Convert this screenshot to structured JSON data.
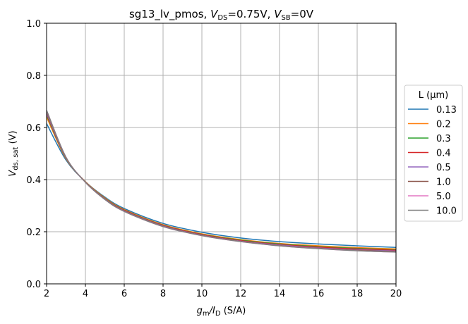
{
  "chart_data": {
    "type": "line",
    "title": {
      "parts": [
        {
          "text": "sg13_lv_pmos, ",
          "style": "normal"
        },
        {
          "text": "V",
          "style": "italic"
        },
        {
          "text": "DS",
          "style": "sub"
        },
        {
          "text": "=0.75V, ",
          "style": "normal"
        },
        {
          "text": "V",
          "style": "italic"
        },
        {
          "text": "SB",
          "style": "sub"
        },
        {
          "text": "=0V",
          "style": "normal"
        }
      ]
    },
    "xlabel": {
      "parts": [
        {
          "text": "g",
          "style": "italic"
        },
        {
          "text": "m",
          "style": "sub"
        },
        {
          "text": "/",
          "style": "italic"
        },
        {
          "text": "I",
          "style": "italic"
        },
        {
          "text": "D",
          "style": "sub"
        },
        {
          "text": " (S/A)",
          "style": "normal"
        }
      ]
    },
    "ylabel": {
      "parts": [
        {
          "text": "V",
          "style": "italic"
        },
        {
          "text": "ds, sat",
          "style": "sub"
        },
        {
          "text": " (V)",
          "style": "normal"
        }
      ]
    },
    "xlim": [
      2,
      20
    ],
    "ylim": [
      0.0,
      1.0
    ],
    "xticks": [
      2,
      4,
      6,
      8,
      10,
      12,
      14,
      16,
      18,
      20
    ],
    "xtick_labels": [
      "2",
      "4",
      "6",
      "8",
      "10",
      "12",
      "14",
      "16",
      "18",
      "20"
    ],
    "yticks": [
      0.0,
      0.2,
      0.4,
      0.6,
      0.8,
      1.0
    ],
    "ytick_labels": [
      "0.0",
      "0.2",
      "0.4",
      "0.6",
      "0.8",
      "1.0"
    ],
    "grid": true,
    "legend": {
      "title": "L (µm)",
      "placement": "outside-right"
    },
    "x": [
      2,
      3,
      4,
      5,
      6,
      8,
      10,
      12,
      14,
      16,
      18,
      20
    ],
    "series": [
      {
        "name": "0.13",
        "color": "#1f77b4",
        "values": [
          0.615,
          0.475,
          0.392,
          0.333,
          0.289,
          0.232,
          0.198,
          0.176,
          0.162,
          0.153,
          0.146,
          0.14
        ]
      },
      {
        "name": "0.2",
        "color": "#ff7f0e",
        "values": [
          0.64,
          0.48,
          0.392,
          0.33,
          0.285,
          0.227,
          0.192,
          0.17,
          0.155,
          0.146,
          0.139,
          0.134
        ]
      },
      {
        "name": "0.3",
        "color": "#2ca02c",
        "values": [
          0.648,
          0.482,
          0.391,
          0.328,
          0.283,
          0.225,
          0.19,
          0.168,
          0.153,
          0.143,
          0.136,
          0.131
        ]
      },
      {
        "name": "0.4",
        "color": "#d62728",
        "values": [
          0.652,
          0.483,
          0.391,
          0.327,
          0.282,
          0.224,
          0.189,
          0.166,
          0.151,
          0.141,
          0.134,
          0.129
        ]
      },
      {
        "name": "0.5",
        "color": "#9467bd",
        "values": [
          0.655,
          0.484,
          0.39,
          0.326,
          0.28,
          0.222,
          0.187,
          0.164,
          0.149,
          0.138,
          0.131,
          0.126
        ]
      },
      {
        "name": "1.0",
        "color": "#8c564b",
        "values": [
          0.66,
          0.485,
          0.39,
          0.325,
          0.279,
          0.221,
          0.186,
          0.163,
          0.147,
          0.136,
          0.129,
          0.124
        ]
      },
      {
        "name": "5.0",
        "color": "#e377c2",
        "values": [
          0.665,
          0.486,
          0.39,
          0.324,
          0.278,
          0.22,
          0.185,
          0.162,
          0.146,
          0.135,
          0.127,
          0.122
        ]
      },
      {
        "name": "10.0",
        "color": "#7f7f7f",
        "values": [
          0.666,
          0.486,
          0.39,
          0.324,
          0.278,
          0.22,
          0.185,
          0.162,
          0.146,
          0.135,
          0.127,
          0.122
        ]
      }
    ]
  }
}
